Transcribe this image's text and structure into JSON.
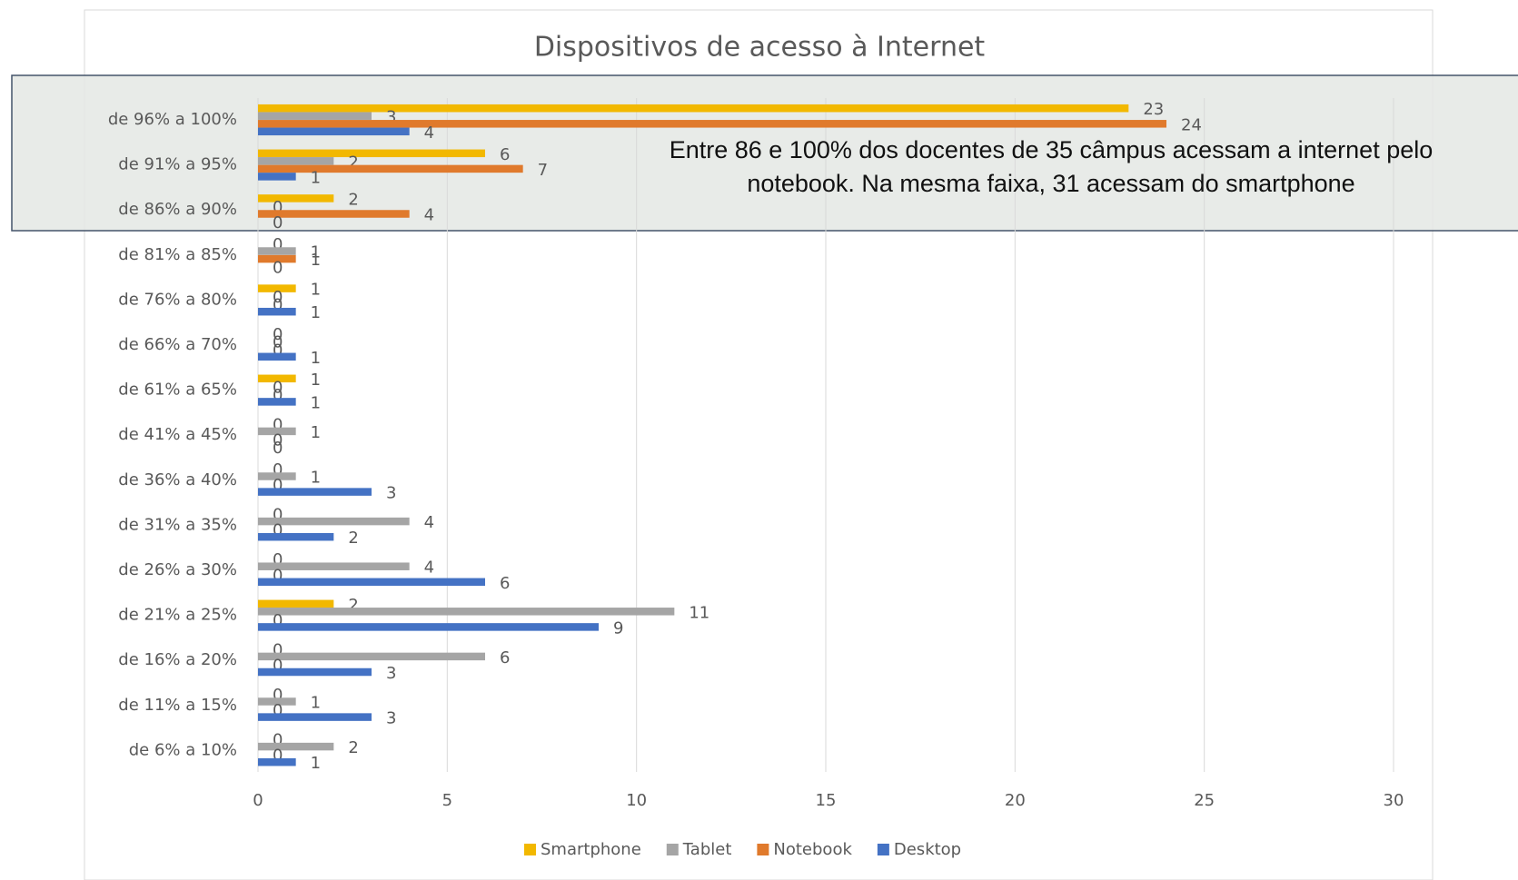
{
  "chart_data": {
    "type": "hbar",
    "title": "Dispositivos de acesso à Internet",
    "annotation": [
      "Entre 86 e 100% dos docentes de 35 câmpus acessam a internet pelo",
      "notebook. Na mesma faixa, 31 acessam do smartphone"
    ],
    "categories": [
      "de 96% a 100%",
      "de 91% a 95%",
      "de 86% a 90%",
      "de 81% a 85%",
      "de 76% a 80%",
      "de 66% a 70%",
      "de 61% a 65%",
      "de 41% a 45%",
      "de 36% a 40%",
      "de 31% a 35%",
      "de 26% a 30%",
      "de 21% a 25%",
      "de 16% a 20%",
      "de 11% a 15%",
      "de 6% a 10%"
    ],
    "series": [
      {
        "name": "Smartphone",
        "color": "#f2b800",
        "values": [
          23,
          6,
          2,
          0,
          1,
          0,
          1,
          0,
          0,
          0,
          0,
          2,
          0,
          0,
          0
        ]
      },
      {
        "name": "Tablet",
        "color": "#a5a5a5",
        "values": [
          3,
          2,
          0,
          1,
          0,
          0,
          0,
          1,
          1,
          4,
          4,
          11,
          6,
          1,
          2
        ]
      },
      {
        "name": "Notebook",
        "color": "#e07a2c",
        "values": [
          24,
          7,
          4,
          1,
          0,
          0,
          0,
          0,
          0,
          0,
          0,
          0,
          0,
          0,
          0
        ]
      },
      {
        "name": "Desktop",
        "color": "#4472c4",
        "values": [
          4,
          1,
          0,
          0,
          1,
          1,
          1,
          0,
          3,
          2,
          6,
          9,
          3,
          3,
          1
        ]
      }
    ],
    "xlim": [
      0,
      30
    ],
    "xticks": [
      0,
      5,
      10,
      15,
      20,
      25,
      30
    ],
    "grid": true,
    "legend": "bottom"
  }
}
